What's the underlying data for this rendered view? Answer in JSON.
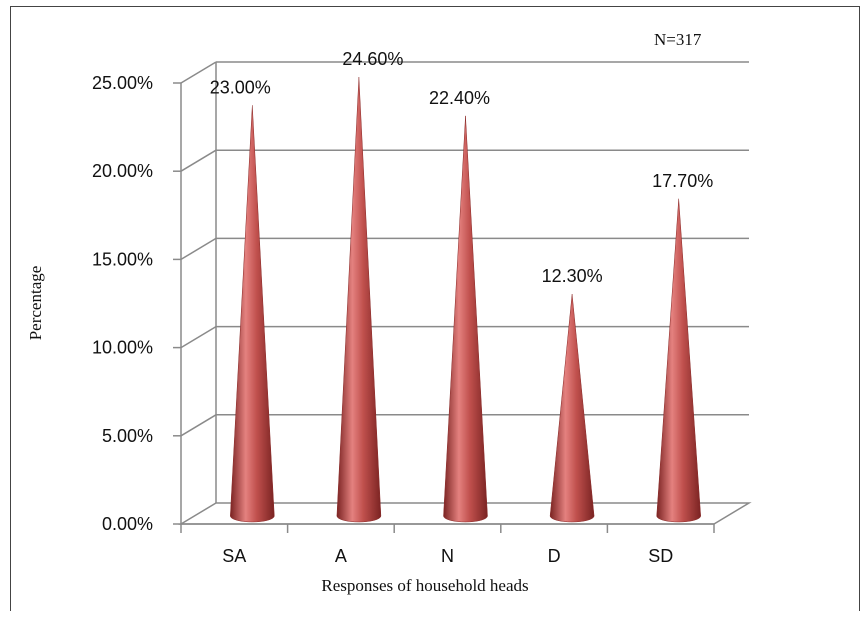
{
  "chart_data": {
    "type": "bar",
    "style": "3d-cone",
    "categories": [
      "SA",
      "A",
      "N",
      "D",
      "SD"
    ],
    "values": [
      23.0,
      24.6,
      22.4,
      12.3,
      17.7
    ],
    "data_labels": [
      "23.00%",
      "24.60%",
      "22.40%",
      "12.30%",
      "17.70%"
    ],
    "yticks": [
      "0.00%",
      "5.00%",
      "10.00%",
      "15.00%",
      "20.00%",
      "25.00%"
    ],
    "ytick_values": [
      0,
      5,
      10,
      15,
      20,
      25
    ],
    "ylim": [
      0,
      25
    ],
    "xlabel": "Responses of household heads",
    "ylabel": "Percentage",
    "annotation": "N=317",
    "grid": true,
    "legend": "none",
    "series_color": "#c0504d"
  }
}
